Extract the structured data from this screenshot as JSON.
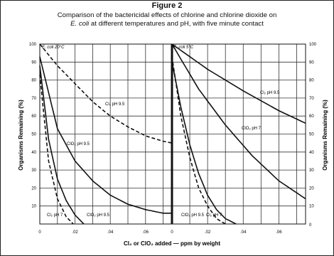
{
  "figure": {
    "title": "Figure 2",
    "subtitle_line1": "Comparison of the bactericidal effects of chlorine and chlorine dioxide on",
    "subtitle_line2_italic": "E. coli",
    "subtitle_line2_rest": " at different temperatures and pH, with five minute contact"
  },
  "chart_data": [
    {
      "type": "line",
      "panel_label": "E. coli  20°C",
      "xlabel": "Cl₂ or ClO₂ added — ppm by weight",
      "ylabel": "Organisms Remaining (%)",
      "xlim": [
        0,
        0.075
      ],
      "ylim": [
        0,
        100
      ],
      "x_ticks": [
        "0",
        ".02",
        ".04",
        ".06"
      ],
      "y_ticks": [
        10,
        20,
        30,
        40,
        50,
        60,
        70,
        80,
        90,
        100
      ],
      "grid": true,
      "series": [
        {
          "name": "Cl₂ pH 9.5",
          "style": "dashed",
          "x": [
            0,
            0.01,
            0.02,
            0.03,
            0.04,
            0.05,
            0.06,
            0.07,
            0.075
          ],
          "y": [
            100,
            88,
            78,
            68,
            60,
            54,
            49,
            46,
            45
          ]
        },
        {
          "name": "ClO₂ pH 9.5",
          "style": "solid",
          "x": [
            0,
            0.01,
            0.02,
            0.03,
            0.04,
            0.05,
            0.06,
            0.07,
            0.075
          ],
          "y": [
            93,
            53,
            35,
            24,
            16,
            11,
            8,
            6,
            6
          ]
        },
        {
          "name": "Cl₂ pH 7",
          "style": "solid",
          "x": [
            0,
            0.005,
            0.01,
            0.015,
            0.02,
            0.025
          ],
          "y": [
            88,
            47,
            25,
            13,
            5,
            0
          ]
        },
        {
          "name": "ClO₂ pH 9.5",
          "style": "dashed",
          "x": [
            0,
            0.005,
            0.01,
            0.015,
            0.019
          ],
          "y": [
            83,
            35,
            14,
            4,
            0
          ]
        }
      ]
    },
    {
      "type": "line",
      "panel_label": "E. coli  5°C",
      "xlabel": "Cl₂ or ClO₂ added — ppm by weight",
      "ylabel": "Organisms Remaining (%)",
      "xlim": [
        0,
        0.075
      ],
      "ylim": [
        0,
        100
      ],
      "x_ticks": [
        "0",
        ".02",
        ".04",
        ".06"
      ],
      "y_ticks": [
        10,
        20,
        30,
        40,
        50,
        60,
        70,
        80,
        90,
        100
      ],
      "grid": true,
      "series": [
        {
          "name": "Cl₂ pH 9.5",
          "style": "solid",
          "x": [
            0,
            0.02,
            0.04,
            0.06,
            0.075
          ],
          "y": [
            100,
            86,
            74,
            63,
            56
          ]
        },
        {
          "name": "ClO₂ pH 7",
          "style": "solid",
          "x": [
            0,
            0.015,
            0.03,
            0.045,
            0.06,
            0.075
          ],
          "y": [
            100,
            75,
            55,
            38,
            24,
            14
          ]
        },
        {
          "name": "ClO₂ pH 9.5",
          "style": "solid",
          "x": [
            0,
            0.005,
            0.01,
            0.015,
            0.02,
            0.025,
            0.03,
            0.036
          ],
          "y": [
            90,
            65,
            44,
            28,
            16,
            8,
            3,
            0
          ]
        },
        {
          "name": "Cl₂ pH 7",
          "style": "dashed",
          "x": [
            0,
            0.005,
            0.01,
            0.015,
            0.02,
            0.025,
            0.03
          ],
          "y": [
            93,
            60,
            37,
            20,
            10,
            3,
            0
          ]
        }
      ]
    }
  ],
  "labels": {
    "left": {
      "cl2_ph95": "Cl₂ pH 9.5",
      "clo2_ph95": "ClO₂ pH 9.5",
      "cl2_ph7": "Cl₂ pH 7",
      "clo2_ph95_dashed": "ClO₂ pH 9.5"
    },
    "right": {
      "cl2_ph95": "Cl₂ pH 9.5",
      "clo2_ph7": "ClO₂ pH 7",
      "clo2_ph95": "ClO₂ pH 9.5",
      "cl2_ph7": "Cl₂ pH 7"
    }
  }
}
